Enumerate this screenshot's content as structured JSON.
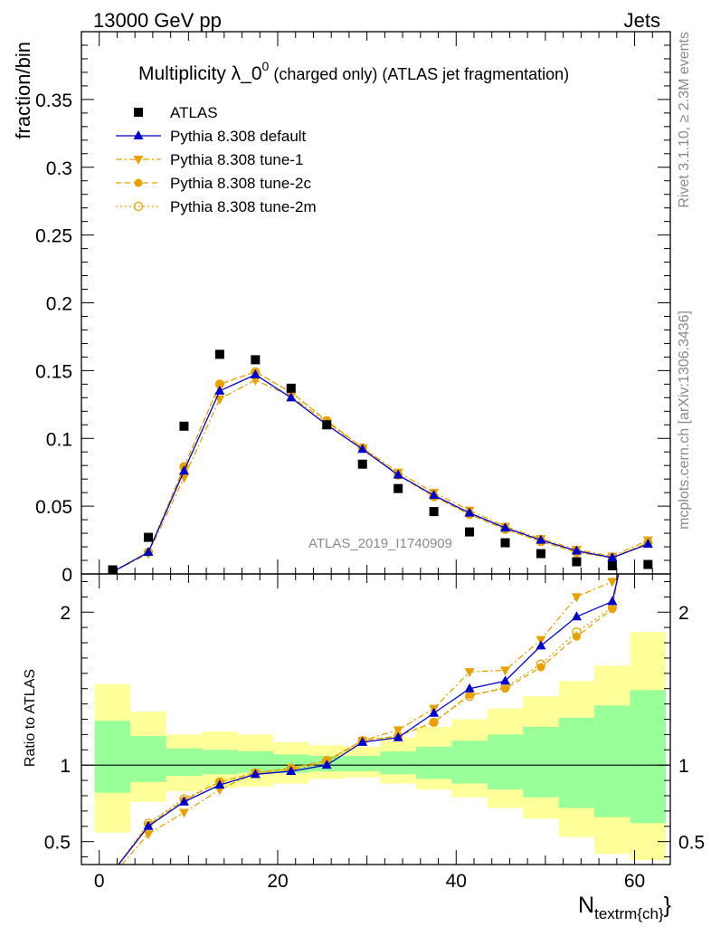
{
  "header": {
    "left": "13000 GeV pp",
    "right": "Jets"
  },
  "side_labels": {
    "rivet": "Rivet 3.1.10, ≥ 2.3M events",
    "mcplots": "mcplots.cern.ch [arXiv:1306.3436]"
  },
  "title": {
    "main": "Multiplicity λ_0",
    "sup": "0",
    "rest": " (charged only) (ATLAS jet fragmentation)"
  },
  "watermark": "ATLAS_2019_I1740909",
  "ylabel_main": "fraction/bin",
  "ylabel_ratio": "Ratio to ATLAS",
  "xlabel": {
    "main": "N",
    "sub": "textrm{ch}",
    "close": "}"
  },
  "colors": {
    "data": "#000000",
    "default": "#0000cc",
    "tune": "#e8a200",
    "band_inner": "#99ff99",
    "band_outer": "#ffff99"
  },
  "chart_data": [
    {
      "type": "scatter",
      "panel": "main",
      "xlim": [
        -2,
        64
      ],
      "ylim": [
        0,
        0.4
      ],
      "yticks": [
        0,
        0.05,
        0.1,
        0.15,
        0.2,
        0.25,
        0.3,
        0.35
      ],
      "ytick_labels": [
        "0",
        "0.05",
        "0.1",
        "0.15",
        "0.2",
        "0.25",
        "0.3",
        "0.35"
      ],
      "x": [
        1.5,
        5.5,
        9.5,
        13.5,
        17.5,
        21.5,
        25.5,
        29.5,
        33.5,
        37.5,
        41.5,
        45.5,
        49.5,
        53.5,
        57.5,
        61.5
      ],
      "series": [
        {
          "name": "ATLAS",
          "marker": "square",
          "values": [
            0.003,
            0.027,
            0.109,
            0.162,
            0.158,
            0.137,
            0.11,
            0.081,
            0.063,
            0.046,
            0.031,
            0.023,
            0.015,
            0.009,
            0.006,
            0.007
          ]
        },
        {
          "name": "Pythia 8.308 default",
          "marker": "triangle-up",
          "line": "solid",
          "values": [
            0.0015,
            0.016,
            0.076,
            0.135,
            0.147,
            0.13,
            0.11,
            0.092,
            0.073,
            0.058,
            0.045,
            0.034,
            0.025,
            0.017,
            0.012,
            0.022
          ]
        },
        {
          "name": "Pythia 8.308 tune-1",
          "marker": "triangle-down",
          "line": "dashdot",
          "values": [
            0.0013,
            0.015,
            0.071,
            0.129,
            0.143,
            0.131,
            0.112,
            0.093,
            0.075,
            0.06,
            0.047,
            0.035,
            0.026,
            0.018,
            0.013,
            0.025
          ]
        },
        {
          "name": "Pythia 8.308 tune-2c",
          "marker": "circle",
          "line": "dashed",
          "values": [
            0.0015,
            0.016,
            0.079,
            0.14,
            0.149,
            0.134,
            0.113,
            0.093,
            0.073,
            0.057,
            0.044,
            0.033,
            0.024,
            0.016,
            0.012,
            0.023
          ]
        },
        {
          "name": "Pythia 8.308 tune-2m",
          "marker": "circle-open",
          "line": "dotted",
          "values": [
            0.0016,
            0.016,
            0.079,
            0.14,
            0.149,
            0.134,
            0.113,
            0.093,
            0.073,
            0.057,
            0.044,
            0.033,
            0.024,
            0.016,
            0.012,
            0.023
          ]
        }
      ]
    },
    {
      "type": "line",
      "panel": "ratio",
      "xlim": [
        -2,
        64
      ],
      "ylim": [
        0.35,
        2.25
      ],
      "yticks": [
        0.5,
        1,
        2
      ],
      "ytick_labels": [
        "0.5",
        "1",
        "2"
      ],
      "xticks": [
        0,
        20,
        40,
        60
      ],
      "xtick_labels": [
        "0",
        "20",
        "40",
        "60"
      ],
      "x": [
        1.5,
        5.5,
        9.5,
        13.5,
        17.5,
        21.5,
        25.5,
        29.5,
        33.5,
        37.5,
        41.5,
        45.5,
        49.5,
        53.5,
        57.5,
        61.5
      ],
      "band_edges": [
        -0.5,
        3.5,
        7.5,
        11.5,
        15.5,
        19.5,
        23.5,
        27.5,
        31.5,
        35.5,
        39.5,
        43.5,
        47.5,
        51.5,
        55.5,
        59.5,
        63.5
      ],
      "band_outer": [
        [
          0.56,
          1.53
        ],
        [
          0.76,
          1.35
        ],
        [
          0.83,
          1.2
        ],
        [
          0.85,
          1.22
        ],
        [
          0.86,
          1.2
        ],
        [
          0.88,
          1.15
        ],
        [
          0.91,
          1.13
        ],
        [
          0.92,
          1.12
        ],
        [
          0.88,
          1.18
        ],
        [
          0.84,
          1.25
        ],
        [
          0.79,
          1.3
        ],
        [
          0.72,
          1.37
        ],
        [
          0.65,
          1.45
        ],
        [
          0.53,
          1.55
        ],
        [
          0.42,
          1.65
        ],
        [
          0.38,
          1.87
        ]
      ],
      "band_inner": [
        [
          0.82,
          1.29
        ],
        [
          0.89,
          1.19
        ],
        [
          0.93,
          1.11
        ],
        [
          0.94,
          1.1
        ],
        [
          0.95,
          1.09
        ],
        [
          0.95,
          1.07
        ],
        [
          0.96,
          1.06
        ],
        [
          0.96,
          1.06
        ],
        [
          0.94,
          1.09
        ],
        [
          0.91,
          1.12
        ],
        [
          0.88,
          1.16
        ],
        [
          0.84,
          1.2
        ],
        [
          0.79,
          1.25
        ],
        [
          0.72,
          1.31
        ],
        [
          0.66,
          1.39
        ],
        [
          0.62,
          1.49
        ]
      ],
      "series": [
        {
          "name": "Pythia 8.308 default",
          "values": [
            0.3,
            0.6,
            0.76,
            0.87,
            0.94,
            0.96,
            1.0,
            1.15,
            1.18,
            1.34,
            1.5,
            1.55,
            1.78,
            1.97,
            2.07,
            3.1
          ]
        },
        {
          "name": "Pythia 8.308 tune-1",
          "values": [
            0.28,
            0.55,
            0.69,
            0.84,
            0.95,
            0.97,
            1.02,
            1.16,
            1.23,
            1.37,
            1.61,
            1.62,
            1.82,
            2.1,
            2.2,
            3.5
          ]
        },
        {
          "name": "Pythia 8.308 tune-2c",
          "values": [
            0.3,
            0.61,
            0.77,
            0.89,
            0.95,
            0.98,
            1.03,
            1.16,
            1.19,
            1.28,
            1.46,
            1.5,
            1.64,
            1.84,
            2.02,
            3.3
          ]
        },
        {
          "name": "Pythia 8.308 tune-2m",
          "values": [
            0.3,
            0.62,
            0.78,
            0.89,
            0.95,
            0.98,
            1.03,
            1.16,
            1.19,
            1.28,
            1.45,
            1.51,
            1.66,
            1.87,
            2.03,
            3.3
          ]
        }
      ]
    }
  ]
}
